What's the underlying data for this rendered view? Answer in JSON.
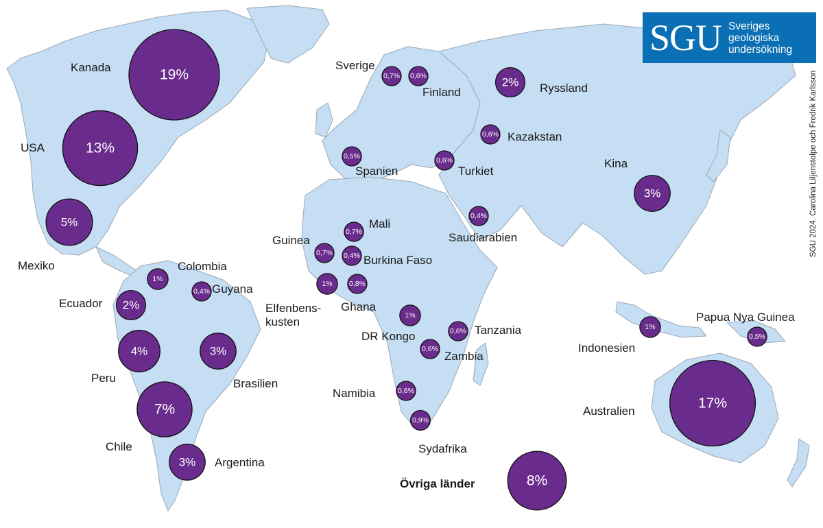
{
  "map": {
    "markers": [
      {
        "id": "kanada",
        "label": "Kanada",
        "pct": "19%"
      },
      {
        "id": "usa",
        "label": "USA",
        "pct": "13%"
      },
      {
        "id": "mexiko",
        "label": "Mexiko",
        "pct": "5%"
      },
      {
        "id": "colombia",
        "label": "Colombia",
        "pct": "1%"
      },
      {
        "id": "guyana",
        "label": "Guyana",
        "pct": "0,4%"
      },
      {
        "id": "ecuador",
        "label": "Ecuador",
        "pct": "2%"
      },
      {
        "id": "peru",
        "label": "Peru",
        "pct": "4%"
      },
      {
        "id": "brasilien",
        "label": "Brasilien",
        "pct": "3%"
      },
      {
        "id": "chile",
        "label": "Chile",
        "pct": "7%"
      },
      {
        "id": "argentina",
        "label": "Argentina",
        "pct": "3%"
      },
      {
        "id": "sverige",
        "label": "Sverige",
        "pct": "0,7%"
      },
      {
        "id": "finland",
        "label": "Finland",
        "pct": "0,6%"
      },
      {
        "id": "ryssland",
        "label": "Ryssland",
        "pct": "2%"
      },
      {
        "id": "kazakstan",
        "label": "Kazakstan",
        "pct": "0,6%"
      },
      {
        "id": "spanien",
        "label": "Spanien",
        "pct": "0,5%"
      },
      {
        "id": "turkiet",
        "label": "Turkiet",
        "pct": "0,6%"
      },
      {
        "id": "kina",
        "label": "Kina",
        "pct": "3%"
      },
      {
        "id": "saudiarabien",
        "label": "Saudiarabien",
        "pct": "0,4%"
      },
      {
        "id": "mali",
        "label": "Mali",
        "pct": "0,7%"
      },
      {
        "id": "guinea",
        "label": "Guinea",
        "pct": "0,7%"
      },
      {
        "id": "burkina-faso",
        "label": "Burkina Faso",
        "pct": "0,4%"
      },
      {
        "id": "elfenbenskusten",
        "label": "Elfenbens-\nkusten",
        "pct": "1%"
      },
      {
        "id": "ghana",
        "label": "Ghana",
        "pct": "0,8%"
      },
      {
        "id": "dr-kongo",
        "label": "DR Kongo",
        "pct": "1%"
      },
      {
        "id": "tanzania",
        "label": "Tanzania",
        "pct": "0,6%"
      },
      {
        "id": "zambia",
        "label": "Zambia",
        "pct": "0,6%"
      },
      {
        "id": "namibia",
        "label": "Namibia",
        "pct": "0,6%"
      },
      {
        "id": "sydafrika",
        "label": "Sydafrika",
        "pct": "0,9%"
      },
      {
        "id": "indonesien",
        "label": "Indonesien",
        "pct": "1%"
      },
      {
        "id": "papua-nya-guinea",
        "label": "Papua Nya Guinea",
        "pct": "0,5%"
      },
      {
        "id": "australien",
        "label": "Australien",
        "pct": "17%"
      },
      {
        "id": "ovriga-lander",
        "label": "Övriga länder",
        "pct": "8%"
      }
    ],
    "colors": {
      "land": "#c5def3",
      "bubble": "#6a2c8c",
      "logo": "#0a6fb4"
    }
  },
  "logo": {
    "mark": "SGU",
    "lines": [
      "Sveriges",
      "geologiska",
      "undersökning"
    ]
  },
  "credit": "SGU 2024. Carolina Liljenstolpe och Fredrik Karlsson"
}
